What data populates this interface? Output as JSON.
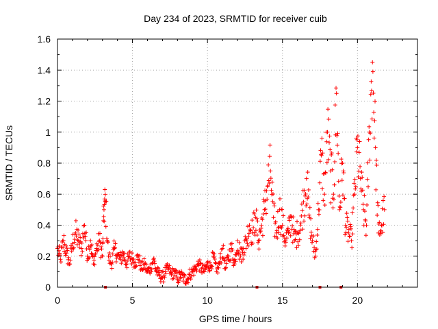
{
  "chart_data": {
    "type": "scatter",
    "title": "Day 234 of 2023, SRMTID for receiver cuib",
    "xlabel": "GPS time / hours",
    "ylabel": "SRMTID / TECUs",
    "xlim": [
      0,
      24
    ],
    "ylim": [
      0,
      1.6
    ],
    "x_ticks": [
      0,
      5,
      10,
      15,
      20
    ],
    "x_tick_labels": [
      "0",
      "5",
      "10",
      "15",
      "20"
    ],
    "y_ticks": [
      0,
      0.2,
      0.4,
      0.6,
      0.8,
      1.0,
      1.2,
      1.4,
      1.6
    ],
    "y_tick_labels": [
      "0",
      "0.2",
      "0.4",
      "0.6",
      "0.8",
      "1",
      "1.2",
      "1.4",
      "1.6"
    ],
    "grid": true,
    "marker": "+",
    "color": "#ff0000",
    "series": [
      {
        "name": "SRMTID",
        "x": [
          0.0,
          0.2,
          0.4,
          0.6,
          0.8,
          1.0,
          1.2,
          1.4,
          1.6,
          1.8,
          2.0,
          2.2,
          2.4,
          2.6,
          2.8,
          3.0,
          3.1,
          3.2,
          3.4,
          3.6,
          3.8,
          4.0,
          4.2,
          4.4,
          4.6,
          4.8,
          5.0,
          5.2,
          5.4,
          5.6,
          5.8,
          6.0,
          6.2,
          6.4,
          6.6,
          6.8,
          7.0,
          7.2,
          7.4,
          7.6,
          7.8,
          8.0,
          8.2,
          8.4,
          8.6,
          8.8,
          9.0,
          9.2,
          9.4,
          9.6,
          9.8,
          10.0,
          10.2,
          10.4,
          10.6,
          10.8,
          11.0,
          11.2,
          11.4,
          11.6,
          11.8,
          12.0,
          12.2,
          12.4,
          12.6,
          12.8,
          13.0,
          13.2,
          13.4,
          13.6,
          13.8,
          14.0,
          14.2,
          14.4,
          14.6,
          14.8,
          15.0,
          15.2,
          15.4,
          15.6,
          15.8,
          16.0,
          16.2,
          16.4,
          16.6,
          16.8,
          17.0,
          17.2,
          17.4,
          17.6,
          17.8,
          18.0,
          18.2,
          18.4,
          18.6,
          18.8,
          19.0,
          19.2,
          19.4,
          19.6,
          19.8,
          20.0,
          20.2,
          20.4,
          20.6,
          20.8,
          21.0,
          21.2,
          21.4,
          21.6,
          21.8
        ],
        "y": [
          0.25,
          0.18,
          0.3,
          0.22,
          0.15,
          0.28,
          0.35,
          0.3,
          0.25,
          0.4,
          0.2,
          0.3,
          0.15,
          0.25,
          0.3,
          0.2,
          0.5,
          0.55,
          0.2,
          0.15,
          0.25,
          0.2,
          0.18,
          0.22,
          0.15,
          0.2,
          0.18,
          0.16,
          0.2,
          0.12,
          0.15,
          0.1,
          0.12,
          0.18,
          0.1,
          0.08,
          0.06,
          0.1,
          0.12,
          0.08,
          0.1,
          0.05,
          0.08,
          0.06,
          0.04,
          0.08,
          0.1,
          0.12,
          0.15,
          0.12,
          0.1,
          0.15,
          0.13,
          0.2,
          0.1,
          0.15,
          0.25,
          0.12,
          0.2,
          0.25,
          0.15,
          0.3,
          0.2,
          0.25,
          0.3,
          0.4,
          0.35,
          0.45,
          0.3,
          0.4,
          0.5,
          0.65,
          0.75,
          0.45,
          0.35,
          0.5,
          0.4,
          0.3,
          0.35,
          0.45,
          0.3,
          0.35,
          0.4,
          0.55,
          0.7,
          0.45,
          0.3,
          0.2,
          0.5,
          0.85,
          0.6,
          1.0,
          0.75,
          0.6,
          1.25,
          0.5,
          0.8,
          0.4,
          0.35,
          0.3,
          0.6,
          0.9,
          0.7,
          0.5,
          0.4,
          1.0,
          1.45,
          0.9,
          0.35,
          0.4,
          0.5
        ]
      }
    ],
    "bad_data_marks_x": [
      3.2,
      13.3,
      17.5,
      18.9
    ]
  }
}
